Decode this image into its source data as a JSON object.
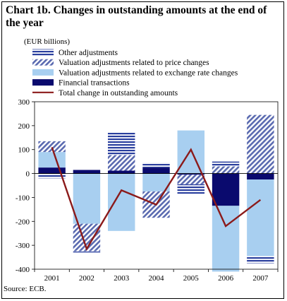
{
  "chart_data": {
    "type": "bar",
    "stacked": true,
    "title": "Chart 1b. Changes in outstanding amounts at the end of the year",
    "unit": "(EUR billions)",
    "source": "Source: ECB.",
    "categories": [
      "2001",
      "2002",
      "2003",
      "2004",
      "2005",
      "2006",
      "2007"
    ],
    "ylim": [
      -400,
      300
    ],
    "yticks": [
      -400,
      -300,
      -200,
      -100,
      0,
      100,
      200,
      300
    ],
    "series": [
      {
        "name": "Financial transactions",
        "kind": "bar",
        "color": "#0a0a6e",
        "pattern": "solid",
        "values": [
          25,
          15,
          12,
          25,
          -5,
          -135,
          -25
        ]
      },
      {
        "name": "Valuation adjustments related to exchange rate changes",
        "kind": "bar",
        "color": "#a8cff0",
        "pattern": "solid",
        "values": [
          65,
          -210,
          -240,
          -75,
          180,
          -275,
          -320
        ]
      },
      {
        "name": "Valuation adjustments related to price changes",
        "kind": "bar",
        "color": "#5a6ab0",
        "pattern": "diagonal",
        "values": [
          45,
          -115,
          65,
          -110,
          -40,
          30,
          245
        ]
      },
      {
        "name": "Other adjustments",
        "kind": "bar",
        "color": "#2a3f9e",
        "pattern": "horizontal",
        "values": [
          -20,
          -5,
          95,
          20,
          -40,
          20,
          -30
        ]
      },
      {
        "name": "Total change in outstanding amounts",
        "kind": "line",
        "color": "#8b1a1a",
        "values": [
          110,
          -315,
          -70,
          -130,
          100,
          -220,
          -110
        ]
      }
    ],
    "legend": [
      "Other adjustments",
      "Valuation adjustments related to price changes",
      "Valuation adjustments related to exchange rate changes",
      "Financial transactions",
      "Total change in outstanding amounts"
    ],
    "grid": false,
    "legend_position": "top-left"
  }
}
